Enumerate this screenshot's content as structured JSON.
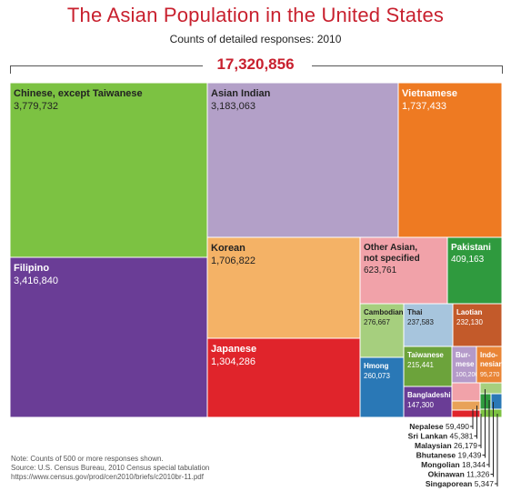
{
  "chart_data": {
    "type": "treemap",
    "title": "The Asian Population in the United States",
    "subtitle": "Counts of detailed responses: 2010",
    "total": "17,320,856",
    "items": [
      {
        "name": "Chinese, except Taiwanese",
        "value": 3779732,
        "label": "3,779,732",
        "color": "#7cc242"
      },
      {
        "name": "Asian Indian",
        "value": 3183063,
        "label": "3,183,063",
        "color": "#b3a0c8"
      },
      {
        "name": "Vietnamese",
        "value": 1737433,
        "label": "1,737,433",
        "color": "#ee7a22"
      },
      {
        "name": "Filipino",
        "value": 3416840,
        "label": "3,416,840",
        "color": "#6a3d96"
      },
      {
        "name": "Korean",
        "value": 1706822,
        "label": "1,706,822",
        "color": "#f4b266"
      },
      {
        "name": "Other Asian, not specified",
        "value": 623761,
        "label": "623,761",
        "color": "#f1a2a9"
      },
      {
        "name": "Pakistani",
        "value": 409163,
        "label": "409,163",
        "color": "#2f9a3e"
      },
      {
        "name": "Japanese",
        "value": 1304286,
        "label": "1,304,286",
        "color": "#e0242b"
      },
      {
        "name": "Cambodian",
        "value": 276667,
        "label": "276,667",
        "color": "#a6cf7e"
      },
      {
        "name": "Thai",
        "value": 237583,
        "label": "237,583",
        "color": "#a7c5dd"
      },
      {
        "name": "Laotian",
        "value": 232130,
        "label": "232,130",
        "color": "#c35a2a"
      },
      {
        "name": "Hmong",
        "value": 260073,
        "label": "260,073",
        "color": "#2a78b6"
      },
      {
        "name": "Taiwanese",
        "value": 215441,
        "label": "215,441",
        "color": "#6ca33b"
      },
      {
        "name": "Burmese",
        "value": 100200,
        "label": "100,200",
        "color": "#b49ac9"
      },
      {
        "name": "Indonesian",
        "value": 95270,
        "label": "95,270",
        "color": "#e98435"
      },
      {
        "name": "Bangladeshi",
        "value": 147300,
        "label": "147,300",
        "color": "#6a3d96"
      },
      {
        "name": "Nepalese",
        "value": 59490,
        "label": "59,490",
        "color": "#f1a2a9"
      },
      {
        "name": "Sri Lankan",
        "value": 45381,
        "label": "45,381",
        "color": "#e8a258"
      },
      {
        "name": "Malaysian",
        "value": 26179,
        "label": "26,179",
        "color": "#e0242b"
      },
      {
        "name": "Bhutanese",
        "value": 19439,
        "label": "19,439",
        "color": "#a6cf7e"
      },
      {
        "name": "Mongolian",
        "value": 18344,
        "label": "18,344",
        "color": "#2f9a3e"
      },
      {
        "name": "Okinawan",
        "value": 11326,
        "label": "11,326",
        "color": "#2a78b6"
      },
      {
        "name": "Singaporean",
        "value": 5347,
        "label": "5,347",
        "color": "#7cc242"
      }
    ]
  },
  "notes": [
    "Note: Counts of 500 or more responses shown.",
    "Source: U.S. Census Bureau, 2010 Census special tabulation",
    "https://www.census.gov/prod/cen2010/briefs/c2010br-11.pdf"
  ]
}
